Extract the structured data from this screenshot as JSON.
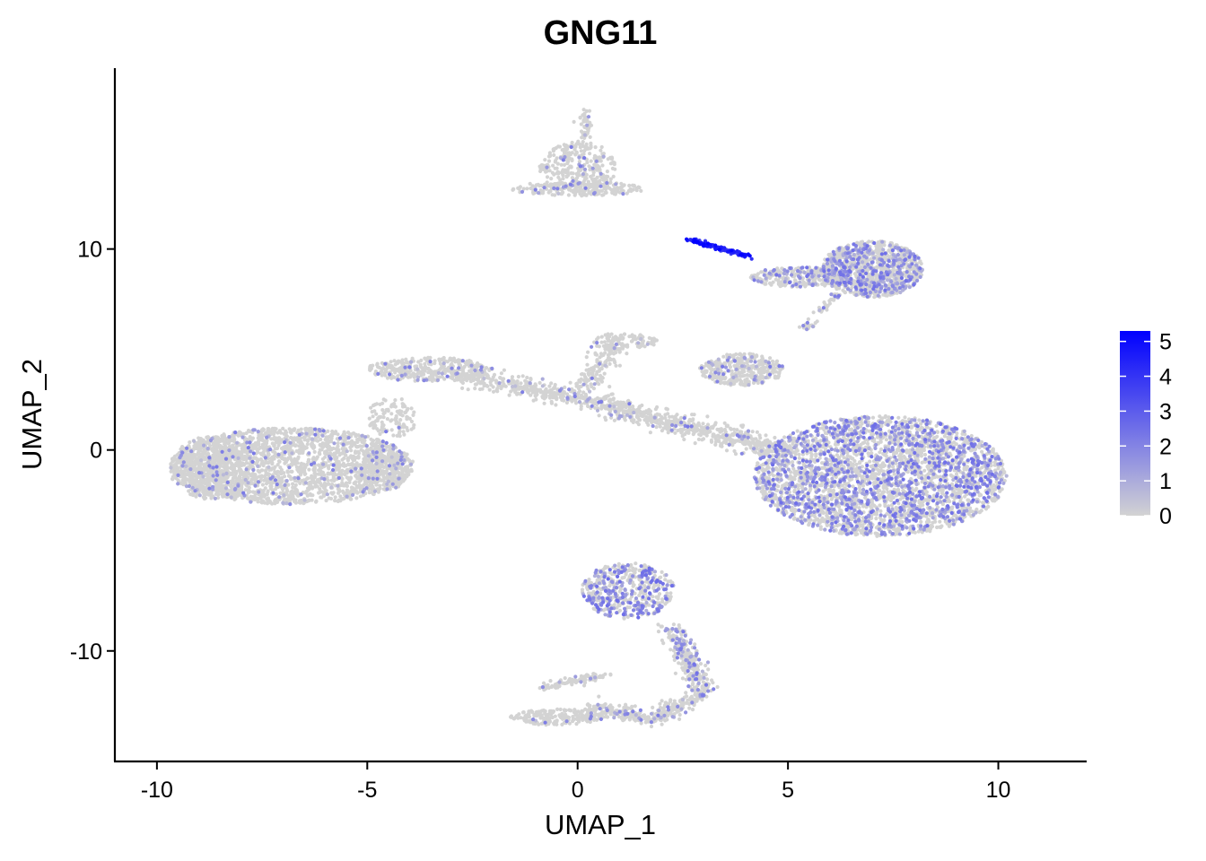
{
  "chart_data": {
    "type": "scatter",
    "title": "GNG11",
    "xlabel": "UMAP_1",
    "ylabel": "UMAP_2",
    "xlim": [
      -11,
      12.1
    ],
    "ylim": [
      -15.5,
      19
    ],
    "x_ticks": [
      -10,
      -5,
      0,
      5,
      10
    ],
    "x_tick_labels": [
      "-10",
      "-5",
      "0",
      "5",
      "10"
    ],
    "y_ticks": [
      -10,
      0,
      10
    ],
    "y_tick_labels": [
      "-10",
      "0",
      "10"
    ],
    "grid": false,
    "legend": {
      "placement": "right",
      "type": "colorbar",
      "min": 0,
      "max": 5.3,
      "ticks": [
        0,
        1,
        2,
        3,
        4,
        5
      ],
      "tick_labels": [
        "0",
        "1",
        "2",
        "3",
        "4",
        "5"
      ],
      "low_color": "#d3d3d3",
      "high_color": "#0000ff"
    },
    "clusters": [
      {
        "shape": "ellipse",
        "cx": -6.8,
        "cy": -0.8,
        "rx": 2.9,
        "ry": 1.9,
        "n": 2200,
        "mean_expression": 0.15
      },
      {
        "shape": "ellipse",
        "cx": -8.7,
        "cy": -0.9,
        "rx": 1.0,
        "ry": 1.6,
        "n": 450,
        "mean_expression": 0.1
      },
      {
        "shape": "ellipse",
        "cx": -4.6,
        "cy": -1.0,
        "rx": 0.6,
        "ry": 1.0,
        "n": 200,
        "mean_expression": 0.2
      },
      {
        "shape": "ellipse",
        "cx": -3.5,
        "cy": 4.0,
        "rx": 1.5,
        "ry": 0.6,
        "n": 350,
        "mean_expression": 0.2
      },
      {
        "shape": "ellipse",
        "cx": -4.4,
        "cy": 1.6,
        "rx": 0.6,
        "ry": 1.0,
        "n": 120,
        "mean_expression": 0.1
      },
      {
        "shape": "segment",
        "x1": -2.8,
        "y1": 3.8,
        "x2": 1.2,
        "y2": 2.0,
        "width": 0.5,
        "n": 420,
        "mean_expression": 0.15
      },
      {
        "shape": "segment",
        "x1": 1.0,
        "y1": 2.0,
        "x2": 4.8,
        "y2": 0.0,
        "width": 0.6,
        "n": 520,
        "mean_expression": 0.15
      },
      {
        "shape": "segment",
        "x1": 0.2,
        "y1": 3.0,
        "x2": 0.9,
        "y2": 5.5,
        "width": 0.4,
        "n": 150,
        "mean_expression": 0.1
      },
      {
        "shape": "ellipse",
        "cx": 1.1,
        "cy": 5.4,
        "rx": 0.8,
        "ry": 0.4,
        "n": 90,
        "mean_expression": 0.1
      },
      {
        "shape": "ellipse",
        "cx": 7.2,
        "cy": -1.3,
        "rx": 3.0,
        "ry": 3.0,
        "n": 3400,
        "mean_expression": 0.7
      },
      {
        "shape": "ellipse",
        "cx": 3.9,
        "cy": 4.0,
        "rx": 1.0,
        "ry": 0.8,
        "n": 380,
        "mean_expression": 0.2
      },
      {
        "shape": "ellipse",
        "cx": 0.0,
        "cy": 14.0,
        "rx": 0.9,
        "ry": 1.4,
        "n": 320,
        "mean_expression": 0.15
      },
      {
        "shape": "ellipse",
        "cx": 0.0,
        "cy": 13.0,
        "rx": 1.6,
        "ry": 0.35,
        "n": 200,
        "mean_expression": 0.1
      },
      {
        "shape": "segment",
        "x1": 0.2,
        "y1": 15.0,
        "x2": 0.2,
        "y2": 17.0,
        "width": 0.15,
        "n": 50,
        "mean_expression": 0.1
      },
      {
        "shape": "ellipse",
        "cx": 7.0,
        "cy": 9.0,
        "rx": 1.2,
        "ry": 1.4,
        "n": 1100,
        "mean_expression": 0.6
      },
      {
        "shape": "ellipse",
        "cx": 5.3,
        "cy": 8.6,
        "rx": 1.2,
        "ry": 0.5,
        "n": 300,
        "mean_expression": 0.5
      },
      {
        "shape": "segment",
        "x1": 5.4,
        "y1": 6.0,
        "x2": 6.2,
        "y2": 7.8,
        "width": 0.15,
        "n": 50,
        "mean_expression": 0.4
      },
      {
        "shape": "segment",
        "x1": 2.6,
        "y1": 10.5,
        "x2": 4.1,
        "y2": 9.6,
        "width": 0.12,
        "n": 120,
        "mean_expression": 4.3
      },
      {
        "shape": "ellipse",
        "cx": 1.2,
        "cy": -7.0,
        "rx": 1.1,
        "ry": 1.4,
        "n": 500,
        "mean_expression": 0.9
      },
      {
        "shape": "segment",
        "x1": 2.2,
        "y1": -8.8,
        "x2": 3.0,
        "y2": -12.0,
        "width": 0.35,
        "n": 280,
        "mean_expression": 0.5
      },
      {
        "shape": "segment",
        "x1": 3.0,
        "y1": -12.0,
        "x2": 1.8,
        "y2": -13.4,
        "width": 0.35,
        "n": 160,
        "mean_expression": 0.3
      },
      {
        "shape": "ellipse",
        "cx": -0.5,
        "cy": -13.3,
        "rx": 1.1,
        "ry": 0.4,
        "n": 200,
        "mean_expression": 0.1
      },
      {
        "shape": "segment",
        "x1": 0.3,
        "y1": -12.8,
        "x2": 1.8,
        "y2": -13.4,
        "width": 0.35,
        "n": 160,
        "mean_expression": 0.2
      },
      {
        "shape": "segment",
        "x1": -0.8,
        "y1": -11.8,
        "x2": 0.6,
        "y2": -11.2,
        "width": 0.25,
        "n": 100,
        "mean_expression": 0.2
      }
    ]
  }
}
